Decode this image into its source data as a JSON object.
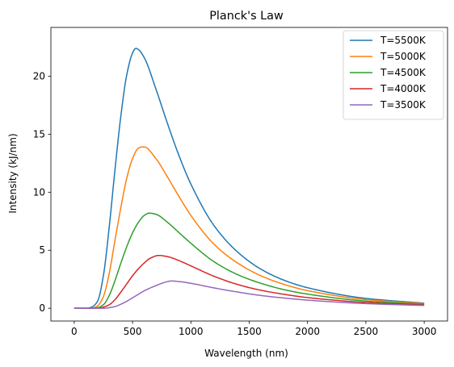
{
  "chart_data": {
    "type": "line",
    "title": "Planck's Law",
    "xlabel": "Wavelength (nm)",
    "ylabel": "Intensity (kJ/nm)",
    "xlim": [
      -200,
      3200
    ],
    "ylim": [
      -1.1,
      24.2
    ],
    "xticks": [
      0,
      500,
      1000,
      1500,
      2000,
      2500,
      3000
    ],
    "yticks": [
      0,
      5,
      10,
      15,
      20
    ],
    "grid": false,
    "legend_position": "top-right",
    "series": [
      {
        "name": "T=5500K",
        "color": "#1f77b4",
        "peak_x": 527,
        "peak_y": 22.4,
        "points": [
          [
            0,
            0
          ],
          [
            100,
            0.0
          ],
          [
            150,
            0.1
          ],
          [
            200,
            0.6
          ],
          [
            250,
            2.8
          ],
          [
            300,
            7.0
          ],
          [
            350,
            12.0
          ],
          [
            400,
            16.6
          ],
          [
            450,
            20.1
          ],
          [
            500,
            22.0
          ],
          [
            527,
            22.4
          ],
          [
            550,
            22.3
          ],
          [
            600,
            21.6
          ],
          [
            700,
            18.9
          ],
          [
            800,
            15.9
          ],
          [
            900,
            13.1
          ],
          [
            1000,
            10.7
          ],
          [
            1200,
            7.1
          ],
          [
            1400,
            4.85
          ],
          [
            1600,
            3.37
          ],
          [
            1800,
            2.41
          ],
          [
            2000,
            1.77
          ],
          [
            2500,
            0.85
          ],
          [
            3000,
            0.44
          ]
        ]
      },
      {
        "name": "T=5000K",
        "color": "#ff7f0e",
        "peak_x": 580,
        "peak_y": 13.9,
        "points": [
          [
            0,
            0
          ],
          [
            100,
            0.0
          ],
          [
            150,
            0.0
          ],
          [
            200,
            0.2
          ],
          [
            250,
            1.0
          ],
          [
            300,
            3.0
          ],
          [
            350,
            5.9
          ],
          [
            400,
            8.7
          ],
          [
            450,
            11.2
          ],
          [
            500,
            12.9
          ],
          [
            550,
            13.8
          ],
          [
            580,
            13.9
          ],
          [
            600,
            13.9
          ],
          [
            700,
            12.9
          ],
          [
            800,
            11.3
          ],
          [
            900,
            9.6
          ],
          [
            1000,
            8.0
          ],
          [
            1200,
            5.5
          ],
          [
            1400,
            3.9
          ],
          [
            1600,
            2.8
          ],
          [
            1800,
            2.05
          ],
          [
            2000,
            1.52
          ],
          [
            2500,
            0.75
          ],
          [
            3000,
            0.4
          ]
        ]
      },
      {
        "name": "T=4500K",
        "color": "#2ca02c",
        "peak_x": 644,
        "peak_y": 8.2,
        "points": [
          [
            0,
            0
          ],
          [
            150,
            0.0
          ],
          [
            200,
            0.05
          ],
          [
            250,
            0.3
          ],
          [
            300,
            1.1
          ],
          [
            350,
            2.4
          ],
          [
            400,
            3.9
          ],
          [
            450,
            5.3
          ],
          [
            500,
            6.5
          ],
          [
            550,
            7.4
          ],
          [
            600,
            8.0
          ],
          [
            644,
            8.2
          ],
          [
            700,
            8.1
          ],
          [
            800,
            7.4
          ],
          [
            900,
            6.5
          ],
          [
            1000,
            5.6
          ],
          [
            1200,
            4.0
          ],
          [
            1400,
            2.9
          ],
          [
            1600,
            2.15
          ],
          [
            1800,
            1.6
          ],
          [
            2000,
            1.22
          ],
          [
            2500,
            0.62
          ],
          [
            3000,
            0.34
          ]
        ]
      },
      {
        "name": "T=4000K",
        "color": "#d62728",
        "peak_x": 724,
        "peak_y": 4.55,
        "points": [
          [
            0,
            0
          ],
          [
            200,
            0.0
          ],
          [
            250,
            0.1
          ],
          [
            300,
            0.3
          ],
          [
            350,
            0.75
          ],
          [
            400,
            1.4
          ],
          [
            450,
            2.1
          ],
          [
            500,
            2.8
          ],
          [
            550,
            3.4
          ],
          [
            600,
            3.9
          ],
          [
            650,
            4.3
          ],
          [
            724,
            4.55
          ],
          [
            800,
            4.45
          ],
          [
            900,
            4.1
          ],
          [
            1000,
            3.65
          ],
          [
            1200,
            2.75
          ],
          [
            1400,
            2.05
          ],
          [
            1600,
            1.55
          ],
          [
            1800,
            1.2
          ],
          [
            2000,
            0.92
          ],
          [
            2500,
            0.5
          ],
          [
            3000,
            0.28
          ]
        ]
      },
      {
        "name": "T=3500K",
        "color": "#9467bd",
        "peak_x": 828,
        "peak_y": 2.35,
        "points": [
          [
            0,
            0
          ],
          [
            250,
            0.0
          ],
          [
            300,
            0.05
          ],
          [
            350,
            0.15
          ],
          [
            400,
            0.35
          ],
          [
            450,
            0.6
          ],
          [
            500,
            0.9
          ],
          [
            550,
            1.2
          ],
          [
            600,
            1.5
          ],
          [
            700,
            1.95
          ],
          [
            800,
            2.3
          ],
          [
            828,
            2.35
          ],
          [
            900,
            2.3
          ],
          [
            1000,
            2.15
          ],
          [
            1200,
            1.75
          ],
          [
            1400,
            1.4
          ],
          [
            1600,
            1.1
          ],
          [
            1800,
            0.88
          ],
          [
            2000,
            0.7
          ],
          [
            2500,
            0.4
          ],
          [
            3000,
            0.24
          ]
        ]
      }
    ]
  }
}
